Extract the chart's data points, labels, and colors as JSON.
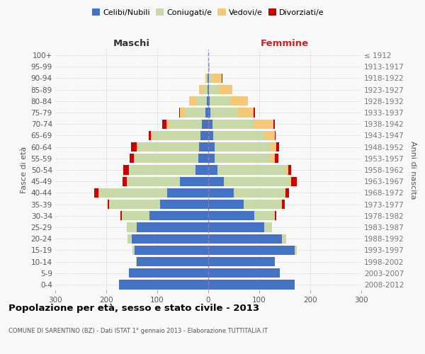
{
  "age_groups": [
    "0-4",
    "5-9",
    "10-14",
    "15-19",
    "20-24",
    "25-29",
    "30-34",
    "35-39",
    "40-44",
    "45-49",
    "50-54",
    "55-59",
    "60-64",
    "65-69",
    "70-74",
    "75-79",
    "80-84",
    "85-89",
    "90-94",
    "95-99",
    "100+"
  ],
  "birth_years": [
    "2008-2012",
    "2003-2007",
    "1998-2002",
    "1993-1997",
    "1988-1992",
    "1983-1987",
    "1978-1982",
    "1973-1977",
    "1968-1972",
    "1963-1967",
    "1958-1962",
    "1953-1957",
    "1948-1952",
    "1943-1947",
    "1938-1942",
    "1933-1937",
    "1928-1932",
    "1923-1927",
    "1918-1922",
    "1913-1917",
    "≤ 1912"
  ],
  "males": {
    "celibe": [
      175,
      155,
      140,
      145,
      150,
      140,
      115,
      95,
      80,
      55,
      25,
      20,
      18,
      15,
      12,
      5,
      3,
      2,
      1,
      0,
      0
    ],
    "coniugato": [
      0,
      0,
      1,
      3,
      8,
      20,
      55,
      100,
      135,
      105,
      130,
      125,
      120,
      95,
      65,
      40,
      20,
      8,
      2,
      0,
      0
    ],
    "vedovo": [
      0,
      0,
      0,
      0,
      0,
      0,
      0,
      0,
      0,
      0,
      1,
      1,
      2,
      3,
      5,
      10,
      15,
      8,
      2,
      0,
      0
    ],
    "divorziato": [
      0,
      0,
      0,
      0,
      1,
      0,
      2,
      2,
      8,
      8,
      10,
      8,
      12,
      4,
      8,
      2,
      0,
      0,
      0,
      0,
      0
    ]
  },
  "females": {
    "nubile": [
      170,
      140,
      130,
      170,
      145,
      110,
      90,
      70,
      50,
      30,
      18,
      12,
      12,
      10,
      8,
      4,
      3,
      2,
      1,
      0,
      0
    ],
    "coniugata": [
      0,
      0,
      1,
      3,
      8,
      15,
      40,
      75,
      100,
      130,
      135,
      110,
      110,
      100,
      80,
      55,
      40,
      20,
      8,
      1,
      0
    ],
    "vedova": [
      0,
      0,
      0,
      0,
      0,
      0,
      0,
      0,
      1,
      2,
      4,
      8,
      12,
      20,
      40,
      30,
      35,
      25,
      18,
      2,
      0
    ],
    "divorziata": [
      0,
      0,
      0,
      0,
      0,
      0,
      3,
      5,
      8,
      12,
      5,
      8,
      5,
      2,
      2,
      2,
      0,
      0,
      1,
      0,
      0
    ]
  },
  "colors": {
    "celibe_nubile": "#4472C4",
    "coniugato_a": "#C8D9A8",
    "vedovo_a": "#F5C878",
    "divorziato_a": "#CC0000"
  },
  "xlim": 300,
  "title": "Popolazione per età, sesso e stato civile - 2013",
  "subtitle": "COMUNE DI SARENTINO (BZ) - Dati ISTAT 1° gennaio 2013 - Elaborazione TUTTITALIA.IT",
  "xlabel_left": "Maschi",
  "xlabel_right": "Femmine",
  "ylabel_left": "Fasce di età",
  "ylabel_right": "Anni di nascita",
  "bg_color": "#f8f8f8",
  "grid_color": "#cccccc"
}
